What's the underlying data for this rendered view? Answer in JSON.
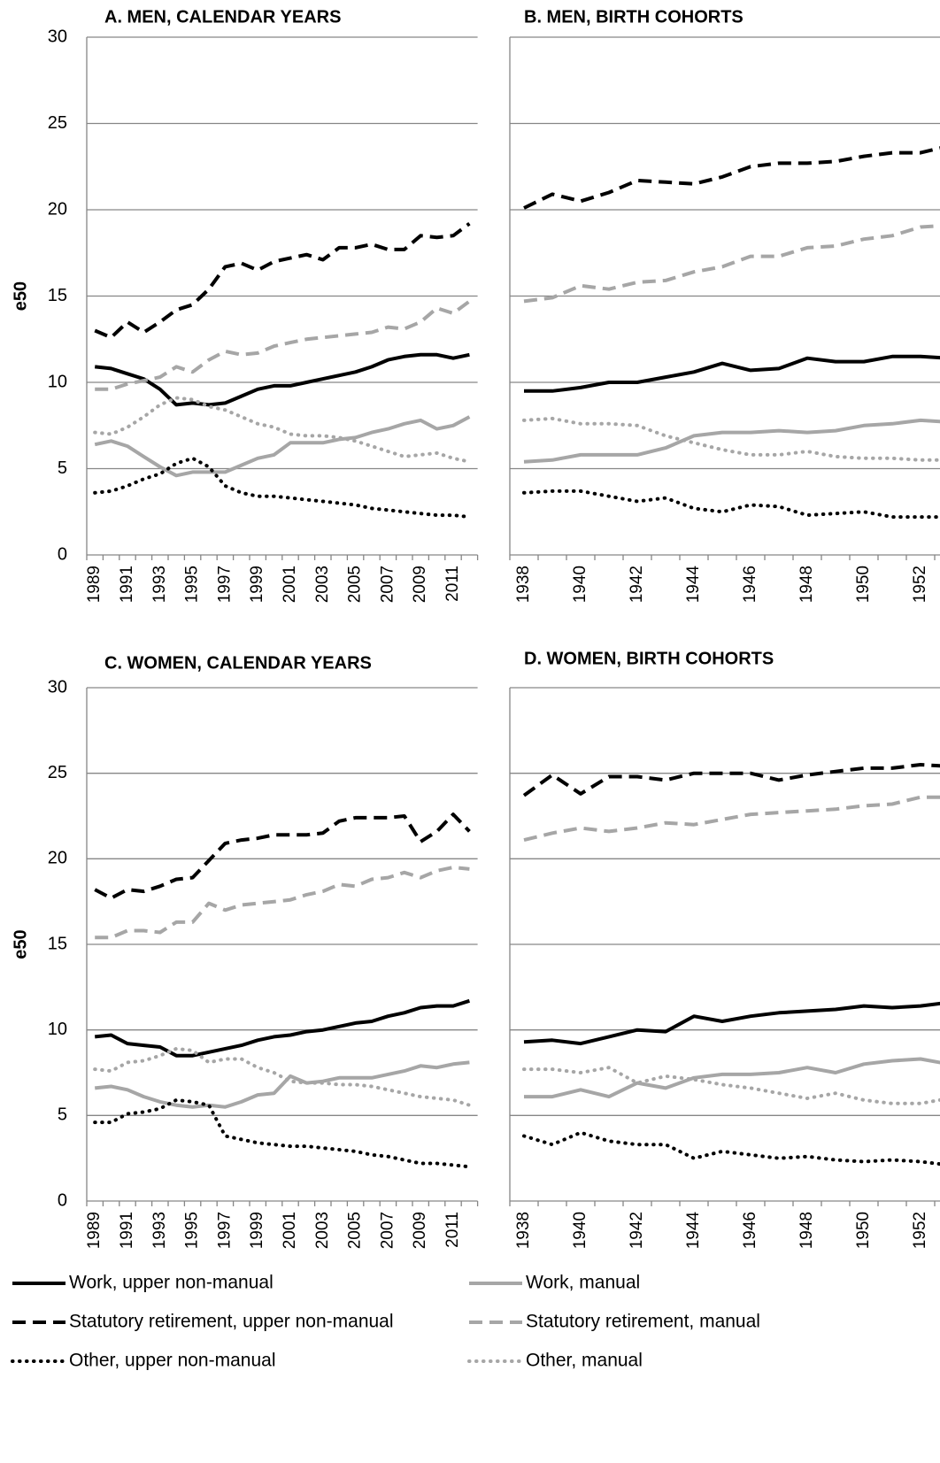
{
  "chart_data": [
    {
      "type": "line",
      "title": "A. MEN, CALENDAR YEARS",
      "y_label": "e50",
      "categories": [
        "1989",
        null,
        "1991",
        null,
        "1993",
        null,
        "1995",
        null,
        "1997",
        null,
        "1999",
        null,
        "2001",
        null,
        "2003",
        null,
        "2005",
        null,
        "2007",
        null,
        "2009",
        null,
        "2011",
        null
      ],
      "ylim": [
        0,
        30
      ],
      "yticks": [
        0,
        5,
        10,
        15,
        20,
        25,
        30
      ],
      "grid": true,
      "series": [
        {
          "values": [
            10.9,
            10.8,
            10.5,
            10.2,
            9.6,
            8.7,
            8.8,
            8.7,
            8.8,
            9.2,
            9.6,
            9.8,
            9.8,
            10.0,
            10.2,
            10.4,
            10.6,
            10.9,
            11.3,
            11.5,
            11.6,
            11.6,
            11.4,
            11.6
          ]
        },
        {
          "values": [
            6.4,
            6.6,
            6.3,
            5.7,
            5.1,
            4.6,
            4.8,
            4.8,
            4.8,
            5.2,
            5.6,
            5.8,
            6.5,
            6.5,
            6.5,
            6.7,
            6.8,
            7.1,
            7.3,
            7.6,
            7.8,
            7.3,
            7.5,
            8.0
          ]
        },
        {
          "values": [
            13.0,
            12.6,
            13.5,
            12.9,
            13.5,
            14.2,
            14.5,
            15.4,
            16.7,
            16.9,
            16.5,
            17.0,
            17.2,
            17.4,
            17.1,
            17.8,
            17.8,
            18.0,
            17.7,
            17.7,
            18.5,
            18.4,
            18.5,
            19.2
          ]
        },
        {
          "values": [
            9.6,
            9.6,
            9.9,
            10.1,
            10.3,
            10.9,
            10.6,
            11.3,
            11.8,
            11.6,
            11.7,
            12.1,
            12.3,
            12.5,
            12.6,
            12.7,
            12.8,
            12.9,
            13.2,
            13.1,
            13.5,
            14.3,
            14.0,
            14.7
          ]
        },
        {
          "values": [
            3.6,
            3.7,
            4.0,
            4.4,
            4.7,
            5.3,
            5.6,
            5.1,
            4.0,
            3.6,
            3.4,
            3.4,
            3.3,
            3.2,
            3.1,
            3.0,
            2.9,
            2.7,
            2.6,
            2.5,
            2.4,
            2.3,
            2.3,
            2.2
          ]
        },
        {
          "values": [
            7.1,
            7.0,
            7.4,
            8.0,
            8.7,
            9.1,
            9.0,
            8.6,
            8.4,
            8.0,
            7.6,
            7.4,
            7.0,
            6.9,
            6.9,
            6.8,
            6.6,
            6.3,
            6.0,
            5.7,
            5.8,
            5.9,
            5.6,
            5.4
          ]
        }
      ]
    },
    {
      "type": "line",
      "title": "B. MEN, BIRTH COHORTS",
      "categories": [
        "1938",
        null,
        "1940",
        null,
        "1942",
        null,
        "1944",
        null,
        "1946",
        null,
        "1948",
        null,
        "1950",
        null,
        "1952",
        null
      ],
      "ylim": [
        0,
        30
      ],
      "yticks": [
        0,
        5,
        10,
        15,
        20,
        25,
        30
      ],
      "grid": true,
      "series": [
        {
          "values": [
            9.5,
            9.5,
            9.7,
            10.0,
            10.0,
            10.3,
            10.6,
            11.1,
            10.7,
            10.8,
            11.4,
            11.2,
            11.2,
            11.5,
            11.5,
            11.4
          ]
        },
        {
          "values": [
            5.4,
            5.5,
            5.8,
            5.8,
            5.8,
            6.2,
            6.9,
            7.1,
            7.1,
            7.2,
            7.1,
            7.2,
            7.5,
            7.6,
            7.8,
            7.7
          ]
        },
        {
          "values": [
            20.1,
            20.9,
            20.5,
            21.0,
            21.7,
            21.6,
            21.5,
            21.9,
            22.5,
            22.7,
            22.7,
            22.8,
            23.1,
            23.3,
            23.3,
            23.7
          ]
        },
        {
          "values": [
            14.7,
            14.9,
            15.6,
            15.4,
            15.8,
            15.9,
            16.4,
            16.7,
            17.3,
            17.3,
            17.8,
            17.9,
            18.3,
            18.5,
            19.0,
            19.1
          ]
        },
        {
          "values": [
            3.6,
            3.7,
            3.7,
            3.4,
            3.1,
            3.3,
            2.7,
            2.5,
            2.9,
            2.8,
            2.3,
            2.4,
            2.5,
            2.2,
            2.2,
            2.2
          ]
        },
        {
          "values": [
            7.8,
            7.9,
            7.6,
            7.6,
            7.5,
            6.9,
            6.5,
            6.1,
            5.8,
            5.8,
            6.0,
            5.7,
            5.6,
            5.6,
            5.5,
            5.5
          ]
        }
      ]
    },
    {
      "type": "line",
      "title": "C. WOMEN, CALENDAR YEARS",
      "y_label": "e50",
      "categories": [
        "1989",
        null,
        "1991",
        null,
        "1993",
        null,
        "1995",
        null,
        "1997",
        null,
        "1999",
        null,
        "2001",
        null,
        "2003",
        null,
        "2005",
        null,
        "2007",
        null,
        "2009",
        null,
        "2011",
        null
      ],
      "ylim": [
        0,
        30
      ],
      "yticks": [
        0,
        5,
        10,
        15,
        20,
        25,
        30
      ],
      "grid": true,
      "series": [
        {
          "values": [
            9.6,
            9.7,
            9.2,
            9.1,
            9.0,
            8.5,
            8.5,
            8.7,
            8.9,
            9.1,
            9.4,
            9.6,
            9.7,
            9.9,
            10.0,
            10.2,
            10.4,
            10.5,
            10.8,
            11.0,
            11.3,
            11.4,
            11.4,
            11.7
          ]
        },
        {
          "values": [
            6.6,
            6.7,
            6.5,
            6.1,
            5.8,
            5.6,
            5.5,
            5.6,
            5.5,
            5.8,
            6.2,
            6.3,
            7.3,
            6.9,
            7.0,
            7.2,
            7.2,
            7.2,
            7.4,
            7.6,
            7.9,
            7.8,
            8.0,
            8.1
          ]
        },
        {
          "values": [
            18.2,
            17.7,
            18.2,
            18.1,
            18.4,
            18.8,
            18.9,
            19.9,
            20.9,
            21.1,
            21.2,
            21.4,
            21.4,
            21.4,
            21.5,
            22.2,
            22.4,
            22.4,
            22.4,
            22.5,
            21.0,
            21.6,
            22.6,
            21.6
          ]
        },
        {
          "values": [
            15.4,
            15.4,
            15.8,
            15.8,
            15.7,
            16.3,
            16.3,
            17.4,
            17.0,
            17.3,
            17.4,
            17.5,
            17.6,
            17.9,
            18.1,
            18.5,
            18.4,
            18.8,
            18.9,
            19.2,
            18.9,
            19.3,
            19.5,
            19.4
          ]
        },
        {
          "values": [
            4.6,
            4.6,
            5.1,
            5.2,
            5.4,
            5.9,
            5.8,
            5.6,
            3.8,
            3.6,
            3.4,
            3.3,
            3.2,
            3.2,
            3.1,
            3.0,
            2.9,
            2.7,
            2.6,
            2.4,
            2.2,
            2.2,
            2.1,
            2.0
          ]
        },
        {
          "values": [
            7.7,
            7.6,
            8.1,
            8.2,
            8.5,
            8.9,
            8.8,
            8.1,
            8.3,
            8.3,
            7.8,
            7.5,
            7.0,
            6.9,
            6.9,
            6.8,
            6.8,
            6.7,
            6.5,
            6.3,
            6.1,
            6.0,
            5.9,
            5.6
          ]
        }
      ]
    },
    {
      "type": "line",
      "title": "D. WOMEN, BIRTH COHORTS",
      "categories": [
        "1938",
        null,
        "1940",
        null,
        "1942",
        null,
        "1944",
        null,
        "1946",
        null,
        "1948",
        null,
        "1950",
        null,
        "1952",
        null
      ],
      "ylim": [
        0,
        30
      ],
      "yticks": [
        0,
        5,
        10,
        15,
        20,
        25,
        30
      ],
      "grid": true,
      "series": [
        {
          "values": [
            9.3,
            9.4,
            9.2,
            9.6,
            10.0,
            9.9,
            10.8,
            10.5,
            10.8,
            11.0,
            11.1,
            11.2,
            11.4,
            11.3,
            11.4,
            11.6
          ]
        },
        {
          "values": [
            6.1,
            6.1,
            6.5,
            6.1,
            6.9,
            6.6,
            7.2,
            7.4,
            7.4,
            7.5,
            7.8,
            7.5,
            8.0,
            8.2,
            8.3,
            8.0
          ]
        },
        {
          "values": [
            23.7,
            24.9,
            23.8,
            24.8,
            24.8,
            24.6,
            25.0,
            25.0,
            25.0,
            24.6,
            24.9,
            25.1,
            25.3,
            25.3,
            25.5,
            25.4
          ]
        },
        {
          "values": [
            21.1,
            21.5,
            21.8,
            21.6,
            21.8,
            22.1,
            22.0,
            22.3,
            22.6,
            22.7,
            22.8,
            22.9,
            23.1,
            23.2,
            23.6,
            23.6
          ]
        },
        {
          "values": [
            3.8,
            3.3,
            4.0,
            3.5,
            3.3,
            3.3,
            2.5,
            2.9,
            2.7,
            2.5,
            2.6,
            2.4,
            2.3,
            2.4,
            2.3,
            2.1
          ]
        },
        {
          "values": [
            7.7,
            7.7,
            7.5,
            7.8,
            6.9,
            7.3,
            7.1,
            6.8,
            6.6,
            6.3,
            6.0,
            6.3,
            5.9,
            5.7,
            5.7,
            6.0
          ]
        }
      ]
    }
  ],
  "legend": [
    {
      "name": "Work, upper non-manual",
      "color": "#000000",
      "style": "solid"
    },
    {
      "name": "Work, manual",
      "color": "#a6a6a6",
      "style": "solid"
    },
    {
      "name": "Statutory retirement, upper non-manual",
      "color": "#000000",
      "style": "dashed"
    },
    {
      "name": "Statutory retirement, manual",
      "color": "#a6a6a6",
      "style": "dashed"
    },
    {
      "name": "Other, upper non-manual",
      "color": "#000000",
      "style": "dotted"
    },
    {
      "name": "Other, manual",
      "color": "#a6a6a6",
      "style": "dotted"
    }
  ]
}
